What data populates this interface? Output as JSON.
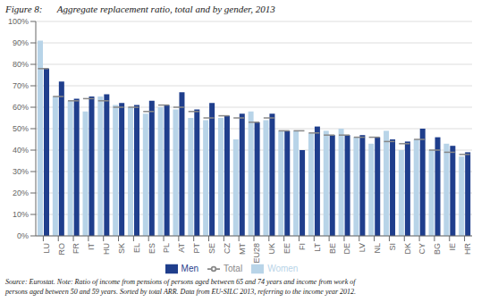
{
  "chart_data": {
    "type": "bar",
    "title": "Figure 8:      Aggregate replacement ratio, total and by gender, 2013",
    "categories": [
      "LU",
      "RO",
      "FR",
      "IT",
      "HU",
      "SK",
      "EL",
      "ES",
      "PL",
      "AT",
      "PT",
      "SE",
      "CZ",
      "MT",
      "EU28",
      "UK",
      "EE",
      "FI",
      "LT",
      "BE",
      "DE",
      "LV",
      "NL",
      "SI",
      "DK",
      "CY",
      "BG",
      "IE",
      "HR"
    ],
    "series": [
      {
        "name": "Women",
        "color": "#b8d4e8",
        "type": "bar",
        "values": [
          91,
          65,
          63,
          58,
          65,
          61,
          60,
          57,
          60,
          59,
          55,
          54,
          55,
          45,
          58,
          54,
          49,
          49,
          48,
          49,
          50,
          46,
          43,
          49,
          40,
          45,
          40,
          43,
          37
        ]
      },
      {
        "name": "Men",
        "color": "#1f3e8c",
        "type": "bar",
        "values": [
          78,
          72,
          64,
          65,
          66,
          62,
          61,
          63,
          61,
          67,
          59,
          62,
          56,
          57,
          53,
          57,
          49,
          40,
          51,
          47,
          47,
          47,
          46,
          45,
          44,
          50,
          46,
          42,
          39
        ]
      },
      {
        "name": "Total",
        "color": "#888888",
        "type": "scatter",
        "marker": "dash",
        "values": [
          78,
          65,
          63,
          64,
          63,
          60,
          60,
          58,
          61,
          60,
          58,
          55,
          56,
          55,
          53,
          55,
          49,
          49,
          48,
          47,
          47,
          46,
          46,
          44,
          43,
          45,
          40,
          39,
          38
        ]
      }
    ],
    "ylim": [
      0,
      100
    ],
    "yticks": [
      {
        "value": 0,
        "label": "0%"
      },
      {
        "value": 10,
        "label": "10%"
      },
      {
        "value": 20,
        "label": "20%"
      },
      {
        "value": 30,
        "label": "30%"
      },
      {
        "value": 40,
        "label": "40%"
      },
      {
        "value": 50,
        "label": "50%"
      },
      {
        "value": 60,
        "label": "60%"
      },
      {
        "value": 70,
        "label": "70%"
      },
      {
        "value": 80,
        "label": "80%"
      },
      {
        "value": 90,
        "label": "90%"
      },
      {
        "value": 100,
        "label": "100%"
      }
    ],
    "grid": true,
    "legend": "bottom",
    "annotations": [
      "Source: Eurostat. Note: Ratio of income from pensions of persons aged between 65 and 74 years and income from work of\npersons aged between 50 and 59 years. Sorted by total ARR. Data from EU-SILC 2013, referring to the income year 2012."
    ]
  }
}
